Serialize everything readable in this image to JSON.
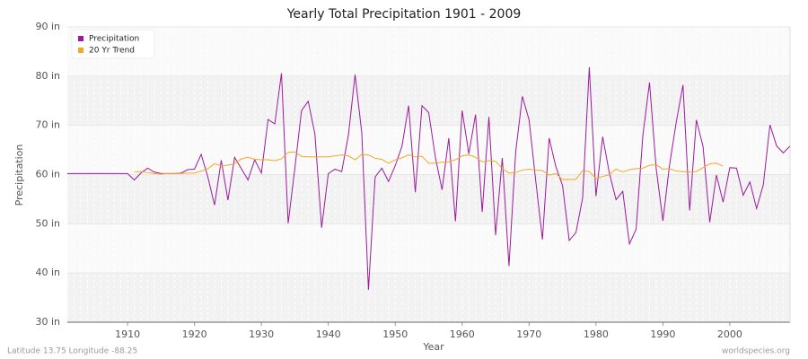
{
  "chart_data": {
    "type": "line",
    "title": "Yearly Total Precipitation 1901 - 2009",
    "x_label": "Year",
    "y_label": "Precipitation",
    "footer_left": "Latitude 13.75 Longitude -88.25",
    "footer_right": "worldspecies.org",
    "xlim": [
      1901,
      2009
    ],
    "ylim": [
      30,
      90
    ],
    "xticks": [
      1910,
      1920,
      1930,
      1940,
      1950,
      1960,
      1970,
      1980,
      1990,
      2000
    ],
    "yticks": [
      {
        "value": 30,
        "label": "30 in"
      },
      {
        "value": 40,
        "label": "40 in"
      },
      {
        "value": 50,
        "label": "50 in"
      },
      {
        "value": 60,
        "label": "60 in"
      },
      {
        "value": 70,
        "label": "70 in"
      },
      {
        "value": 80,
        "label": "80 in"
      },
      {
        "value": 90,
        "label": "90 in"
      }
    ],
    "grid": true,
    "legend": "top-left",
    "x": [
      1901,
      1902,
      1903,
      1904,
      1905,
      1906,
      1907,
      1908,
      1909,
      1910,
      1911,
      1912,
      1913,
      1914,
      1915,
      1916,
      1917,
      1918,
      1919,
      1920,
      1921,
      1922,
      1923,
      1924,
      1925,
      1926,
      1927,
      1928,
      1929,
      1930,
      1931,
      1932,
      1933,
      1934,
      1935,
      1936,
      1937,
      1938,
      1939,
      1940,
      1941,
      1942,
      1943,
      1944,
      1945,
      1946,
      1947,
      1948,
      1949,
      1950,
      1951,
      1952,
      1953,
      1954,
      1955,
      1956,
      1957,
      1958,
      1959,
      1960,
      1961,
      1962,
      1963,
      1964,
      1965,
      1966,
      1967,
      1968,
      1969,
      1970,
      1971,
      1972,
      1973,
      1974,
      1975,
      1976,
      1977,
      1978,
      1979,
      1980,
      1981,
      1982,
      1983,
      1984,
      1985,
      1986,
      1987,
      1988,
      1989,
      1990,
      1991,
      1992,
      1993,
      1994,
      1995,
      1996,
      1997,
      1998,
      1999,
      2000,
      2001,
      2002,
      2003,
      2004,
      2005,
      2006,
      2007,
      2008,
      2009
    ],
    "series": [
      {
        "name": "Precipitation",
        "color": "#9b1b9b",
        "values": [
          60.2,
          60.2,
          60.2,
          60.2,
          60.2,
          60.2,
          60.2,
          60.2,
          60.2,
          60.2,
          58.9,
          60.3,
          61.3,
          60.5,
          60.2,
          60.2,
          60.2,
          60.3,
          61.0,
          61.1,
          64.1,
          59.5,
          53.8,
          62.9,
          54.8,
          63.5,
          61.2,
          58.9,
          63.0,
          60.3,
          71.2,
          70.3,
          80.6,
          50.1,
          61.3,
          73.0,
          74.9,
          68.2,
          49.2,
          60.2,
          61.1,
          60.6,
          68.0,
          80.3,
          68.5,
          36.6,
          59.5,
          61.3,
          58.6,
          61.8,
          65.7,
          74.0,
          56.4,
          74.0,
          72.6,
          63.5,
          56.9,
          67.4,
          50.5,
          73.0,
          64.2,
          72.2,
          52.4,
          71.7,
          47.7,
          63.4,
          41.4,
          64.6,
          75.9,
          71.1,
          58.7,
          46.8,
          67.4,
          61.6,
          57.8,
          46.6,
          48.2,
          55.2,
          81.8,
          55.6,
          67.7,
          60.3,
          54.9,
          56.6,
          45.9,
          48.9,
          67.9,
          78.7,
          61.2,
          50.6,
          62.0,
          70.7,
          78.2,
          52.7,
          71.1,
          65.7,
          50.3,
          59.9,
          54.4,
          61.4,
          61.3,
          55.8,
          58.5,
          53.1,
          57.9,
          70.1,
          65.8,
          64.4,
          65.8
        ]
      },
      {
        "name": "20 Yr Trend",
        "color": "#f5a623",
        "values": [
          null,
          null,
          null,
          null,
          null,
          null,
          null,
          null,
          null,
          null,
          60.5,
          60.6,
          60.4,
          60.2,
          60.1,
          60.2,
          60.2,
          60.2,
          60.3,
          60.3,
          60.7,
          61.2,
          62.2,
          61.8,
          61.9,
          62.2,
          63.2,
          63.5,
          63.1,
          63.0,
          63.0,
          62.8,
          63.2,
          64.5,
          64.6,
          63.7,
          63.6,
          63.6,
          63.6,
          63.6,
          63.8,
          64.0,
          63.8,
          63.0,
          64.1,
          64.0,
          63.3,
          63.1,
          62.3,
          63.0,
          63.4,
          64.0,
          63.6,
          63.7,
          62.3,
          62.3,
          62.5,
          62.6,
          63.0,
          63.8,
          64.0,
          63.5,
          62.6,
          62.8,
          62.7,
          61.2,
          60.3,
          60.4,
          60.9,
          61.1,
          60.9,
          60.8,
          59.9,
          60.2,
          59.0,
          59.0,
          59.0,
          60.8,
          60.6,
          59.2,
          59.6,
          60.0,
          61.1,
          60.5,
          61.0,
          61.2,
          61.3,
          61.9,
          62.0,
          61.1,
          61.2,
          60.7,
          60.6,
          60.5,
          60.6,
          61.4,
          62.2,
          62.3,
          61.7,
          null,
          null,
          null,
          null,
          null,
          null,
          null,
          null,
          null,
          null
        ]
      }
    ]
  }
}
